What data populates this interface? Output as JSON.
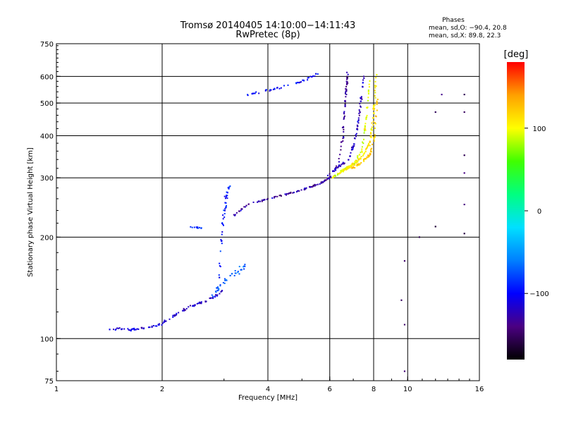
{
  "chart_data": {
    "type": "scatter",
    "title": "Tromsø 20140405 14:10:00−14:11:43",
    "subtitle": "RwPretec (8p)",
    "xlabel": "Frequency [MHz]",
    "ylabel": "Stationary phase Virtual Height [km]",
    "x_scale": "log",
    "y_scale": "log",
    "xlim": [
      1,
      16
    ],
    "ylim": [
      75,
      750
    ],
    "x_ticks": [
      1,
      2,
      4,
      6,
      8,
      10,
      16
    ],
    "x_tick_labels": [
      "1",
      "2",
      "4",
      "6",
      "8",
      "10",
      "16"
    ],
    "x_gridlines": [
      2,
      4,
      6,
      8,
      10
    ],
    "y_ticks": [
      75,
      100,
      200,
      300,
      400,
      500,
      600,
      750
    ],
    "y_tick_labels": [
      "75",
      "100",
      "200",
      "300",
      "400",
      "500",
      "600",
      "750"
    ],
    "y_gridlines": [
      100,
      200,
      300,
      400,
      500,
      600
    ],
    "grid": true,
    "stats": {
      "heading": "Phases",
      "o_line": "mean, sd,O: −90.4, 20.8",
      "x_line": "mean, sd,X:  89.8, 22.3"
    },
    "colorbar": {
      "label": "[deg]",
      "ticks": [
        100,
        0,
        -100
      ],
      "tick_labels": [
        "100",
        "0",
        "−100"
      ],
      "range": [
        -180,
        180
      ],
      "colors": [
        "#000000",
        "#4b0082",
        "#0000ff",
        "#0080ff",
        "#00e0ff",
        "#00ff80",
        "#40ff00",
        "#ffff00",
        "#ffa000",
        "#ff0000"
      ]
    },
    "series": [
      {
        "traces": [
          {
            "points": [
              [
                1.42,
                107
              ],
              [
                1.52,
                107
              ],
              [
                1.6,
                106
              ],
              [
                1.72,
                107
              ],
              [
                1.85,
                108
              ],
              [
                1.98,
                110
              ],
              [
                2.1,
                115
              ],
              [
                2.25,
                120
              ],
              [
                2.42,
                125
              ],
              [
                2.6,
                128
              ],
              [
                2.8,
                132
              ],
              [
                3.0,
                140
              ]
            ],
            "phase": -115,
            "n": 110,
            "jx": 0.01,
            "jy": 0.012
          },
          {
            "points": [
              [
                2.42,
                215
              ],
              [
                2.6,
                212
              ]
            ],
            "phase": -85,
            "n": 12,
            "jx": 0.01,
            "jy": 0.01
          },
          {
            "points": [
              [
                2.8,
                135
              ],
              [
                2.95,
                145
              ],
              [
                3.2,
                155
              ],
              [
                3.45,
                165
              ]
            ],
            "phase": -70,
            "n": 40,
            "jx": 0.015,
            "jy": 0.03
          },
          {
            "points": [
              [
                2.9,
                150
              ],
              [
                2.95,
                190
              ],
              [
                3.0,
                230
              ],
              [
                3.05,
                265
              ],
              [
                3.1,
                285
              ]
            ],
            "phase": -95,
            "n": 45,
            "jx": 0.015,
            "jy": 0.02
          },
          {
            "points": [
              [
                3.2,
                232
              ],
              [
                3.5,
                250
              ],
              [
                3.9,
                258
              ],
              [
                4.5,
                268
              ],
              [
                5.1,
                278
              ],
              [
                5.6,
                288
              ],
              [
                6.0,
                300
              ],
              [
                6.35,
                330
              ],
              [
                6.55,
                400
              ],
              [
                6.65,
                520
              ],
              [
                6.75,
                620
              ]
            ],
            "phase": -130,
            "n": 170,
            "jx": 0.008,
            "jy": 0.008
          },
          {
            "points": [
              [
                3.5,
                530
              ],
              [
                4.2,
                550
              ],
              [
                5.0,
                580
              ],
              [
                5.6,
                615
              ]
            ],
            "phase": -100,
            "n": 45,
            "jx": 0.008,
            "jy": 0.01
          },
          {
            "points": [
              [
                5.8,
                300
              ],
              [
                6.3,
                320
              ],
              [
                6.8,
                340
              ],
              [
                7.1,
                390
              ],
              [
                7.3,
                470
              ],
              [
                7.5,
                600
              ]
            ],
            "phase": -120,
            "n": 80,
            "jx": 0.008,
            "jy": 0.01
          },
          {
            "points": [
              [
                6.1,
                300
              ],
              [
                6.6,
                318
              ],
              [
                7.0,
                330
              ],
              [
                7.4,
                360
              ],
              [
                7.6,
                440
              ],
              [
                7.8,
                600
              ]
            ],
            "phase": 95,
            "n": 90,
            "jx": 0.008,
            "jy": 0.01
          },
          {
            "points": [
              [
                6.4,
                310
              ],
              [
                6.9,
                325
              ],
              [
                7.4,
                345
              ],
              [
                7.8,
                380
              ],
              [
                8.0,
                460
              ],
              [
                8.15,
                620
              ]
            ],
            "phase": 110,
            "n": 110,
            "jx": 0.008,
            "jy": 0.012
          },
          {
            "points": [
              [
                6.9,
                320
              ],
              [
                7.3,
                330
              ],
              [
                7.8,
                350
              ],
              [
                8.05,
                400
              ],
              [
                8.25,
                550
              ]
            ],
            "phase": 120,
            "n": 60,
            "jx": 0.008,
            "jy": 0.012
          },
          {
            "points": [
              [
                9.8,
                80
              ],
              [
                9.8,
                110
              ],
              [
                9.6,
                130
              ],
              [
                9.8,
                170
              ],
              [
                10.8,
                200
              ],
              [
                12.0,
                215
              ],
              [
                14.5,
                205
              ],
              [
                14.5,
                250
              ],
              [
                14.5,
                310
              ],
              [
                14.5,
                350
              ],
              [
                14.5,
                470
              ],
              [
                12.0,
                470
              ],
              [
                12.5,
                530
              ],
              [
                14.5,
                530
              ]
            ],
            "phase": -150,
            "n": 28,
            "jx": 0.01,
            "jy": 0.01
          }
        ]
      }
    ]
  }
}
